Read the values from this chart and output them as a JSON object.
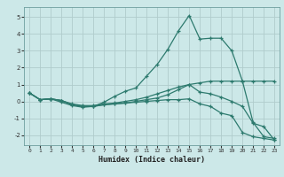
{
  "xlabel": "Humidex (Indice chaleur)",
  "background_color": "#cce8e8",
  "grid_color": "#b0cccc",
  "line_color": "#2d7a6e",
  "xlim": [
    -0.5,
    23.5
  ],
  "ylim": [
    -2.6,
    5.6
  ],
  "xticks": [
    0,
    1,
    2,
    3,
    4,
    5,
    6,
    7,
    8,
    9,
    10,
    11,
    12,
    13,
    14,
    15,
    16,
    17,
    18,
    19,
    20,
    21,
    22,
    23
  ],
  "yticks": [
    -2,
    -1,
    0,
    1,
    2,
    3,
    4,
    5
  ],
  "lines": [
    {
      "x": [
        0,
        1,
        2,
        3,
        4,
        5,
        6,
        7,
        8,
        9,
        10,
        11,
        12,
        13,
        14,
        15,
        16,
        17,
        18,
        19,
        20,
        21,
        22,
        23
      ],
      "y": [
        0.5,
        0.1,
        0.15,
        0.05,
        -0.2,
        -0.3,
        -0.3,
        -0.2,
        -0.15,
        -0.1,
        0.0,
        0.1,
        0.2,
        0.4,
        0.7,
        1.0,
        1.1,
        1.2,
        1.2,
        1.2,
        1.2,
        1.2,
        1.2,
        1.2
      ]
    },
    {
      "x": [
        0,
        1,
        2,
        3,
        4,
        5,
        6,
        7,
        8,
        9,
        10,
        11,
        12,
        13,
        14,
        15,
        16,
        17,
        18,
        19,
        20,
        21,
        22,
        23
      ],
      "y": [
        0.5,
        0.1,
        0.15,
        0.05,
        -0.2,
        -0.3,
        -0.3,
        -0.05,
        0.3,
        0.6,
        0.8,
        1.5,
        2.2,
        3.1,
        4.2,
        5.1,
        3.7,
        3.75,
        3.75,
        3.0,
        1.2,
        -1.25,
        -2.1,
        -2.2
      ]
    },
    {
      "x": [
        0,
        1,
        2,
        3,
        4,
        5,
        6,
        7,
        8,
        9,
        10,
        11,
        12,
        13,
        14,
        15,
        16,
        17,
        18,
        19,
        20,
        21,
        22,
        23
      ],
      "y": [
        0.5,
        0.1,
        0.15,
        -0.05,
        -0.25,
        -0.35,
        -0.3,
        -0.2,
        -0.15,
        -0.1,
        -0.05,
        0.0,
        0.05,
        0.1,
        0.1,
        0.15,
        -0.15,
        -0.3,
        -0.7,
        -0.85,
        -1.85,
        -2.1,
        -2.2,
        -2.3
      ]
    },
    {
      "x": [
        0,
        1,
        2,
        3,
        4,
        5,
        6,
        7,
        8,
        9,
        10,
        11,
        12,
        13,
        14,
        15,
        16,
        17,
        18,
        19,
        20,
        21,
        22,
        23
      ],
      "y": [
        0.5,
        0.1,
        0.15,
        0.05,
        -0.15,
        -0.25,
        -0.25,
        -0.15,
        -0.1,
        0.0,
        0.1,
        0.25,
        0.45,
        0.65,
        0.85,
        1.0,
        0.55,
        0.45,
        0.25,
        0.0,
        -0.3,
        -1.3,
        -1.5,
        -2.3
      ]
    }
  ]
}
